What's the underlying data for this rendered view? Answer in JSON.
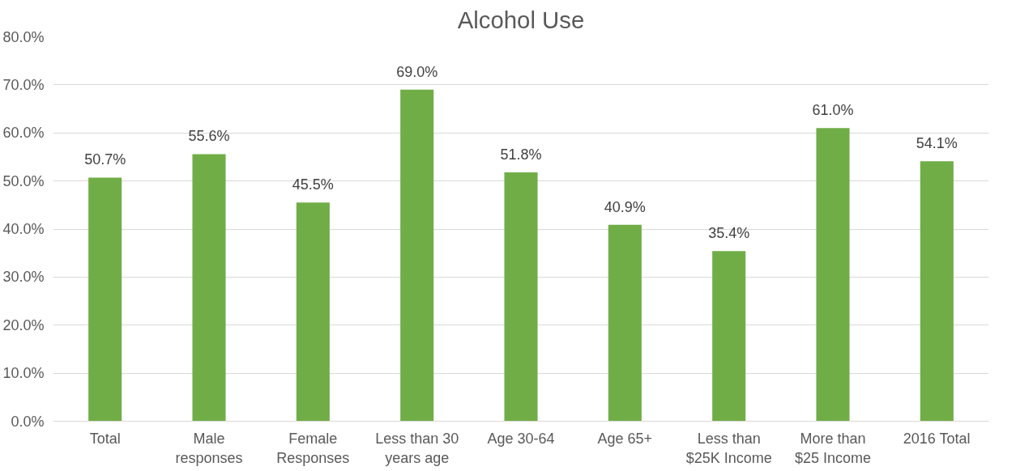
{
  "chart_data": {
    "type": "bar",
    "title": "Alcohol Use",
    "categories": [
      "Total",
      "Male responses",
      "Female Responses",
      "Less than 30 years age",
      "Age 30-64",
      "Age 65+",
      "Less than $25K Income",
      "More than $25 Income",
      "2016 Total"
    ],
    "values": [
      50.7,
      55.6,
      45.5,
      69.0,
      51.8,
      40.9,
      35.4,
      61.0,
      54.1
    ],
    "value_labels": [
      "50.7%",
      "55.6%",
      "45.5%",
      "69.0%",
      "51.8%",
      "40.9%",
      "35.4%",
      "61.0%",
      "54.1%"
    ],
    "color": "#70ad47",
    "ylim": [
      0,
      80
    ],
    "yticks": [
      {
        "value": 0,
        "label": "0.0%"
      },
      {
        "value": 10,
        "label": "10.0%"
      },
      {
        "value": 20,
        "label": "20.0%"
      },
      {
        "value": 30,
        "label": "30.0%"
      },
      {
        "value": 40,
        "label": "40.0%"
      },
      {
        "value": 50,
        "label": "50.0%"
      },
      {
        "value": 60,
        "label": "60.0%"
      },
      {
        "value": 70,
        "label": "70.0%"
      },
      {
        "value": 80,
        "label": "80.0%"
      }
    ],
    "grid": "y"
  }
}
